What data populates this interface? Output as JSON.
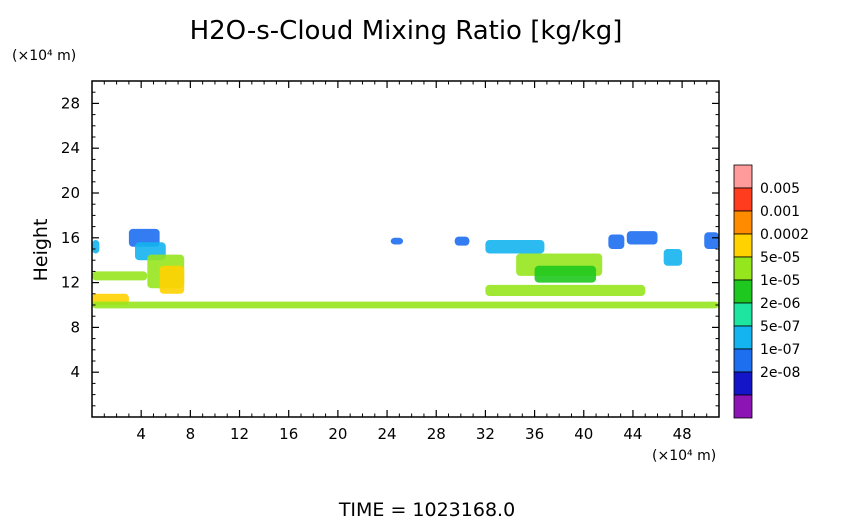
{
  "chart_data": {
    "type": "heatmap",
    "title": "H2O-s-Cloud Mixing Ratio [kg/kg]",
    "ylabel": "Height",
    "y_unit": "(×10⁴ m)",
    "x_unit": "(×10⁴ m)",
    "footer": "TIME =  1023168.0",
    "xlim": [
      0,
      51
    ],
    "ylim": [
      0,
      30
    ],
    "x_ticks": [
      4,
      8,
      12,
      16,
      20,
      24,
      28,
      32,
      36,
      40,
      44,
      48
    ],
    "y_ticks": [
      4,
      8,
      12,
      16,
      20,
      24,
      28
    ],
    "legend": {
      "placement": "right",
      "labels": [
        "0.005",
        "0.001",
        "0.0002",
        "5e-05",
        "1e-05",
        "2e-06",
        "5e-07",
        "1e-07",
        "2e-08"
      ],
      "colors": [
        "#ff9b9b",
        "#ff3c1e",
        "#ff8c00",
        "#ffd200",
        "#96e61e",
        "#1ec81e",
        "#1ee6a0",
        "#14b4f0",
        "#1e6ef0",
        "#1414c8",
        "#8c14b4"
      ]
    },
    "regions": [
      {
        "x": [
          0.0,
          0.6
        ],
        "y": [
          14.6,
          15.8
        ],
        "level": "5e-07"
      },
      {
        "x": [
          3.0,
          5.5
        ],
        "y": [
          15.2,
          16.8
        ],
        "level": "1e-07"
      },
      {
        "x": [
          3.5,
          6.0
        ],
        "y": [
          14.0,
          15.6
        ],
        "level": "5e-07"
      },
      {
        "x": [
          4.5,
          7.5
        ],
        "y": [
          11.5,
          14.5
        ],
        "level": "5e-05"
      },
      {
        "x": [
          5.5,
          7.5
        ],
        "y": [
          11.0,
          13.5
        ],
        "level": "0.0002"
      },
      {
        "x": [
          0.0,
          4.5
        ],
        "y": [
          12.2,
          13.0
        ],
        "level": "5e-05"
      },
      {
        "x": [
          0.0,
          3.0
        ],
        "y": [
          10.0,
          11.0
        ],
        "level": "0.0002"
      },
      {
        "x": [
          0.0,
          51.0
        ],
        "y": [
          9.7,
          10.3
        ],
        "level": "5e-05"
      },
      {
        "x": [
          24.3,
          25.3
        ],
        "y": [
          15.4,
          16.0
        ],
        "level": "1e-07"
      },
      {
        "x": [
          29.5,
          30.7
        ],
        "y": [
          15.3,
          16.1
        ],
        "level": "1e-07"
      },
      {
        "x": [
          32.0,
          36.8
        ],
        "y": [
          14.6,
          15.8
        ],
        "level": "5e-07"
      },
      {
        "x": [
          34.5,
          41.5
        ],
        "y": [
          12.6,
          14.6
        ],
        "level": "5e-05"
      },
      {
        "x": [
          36.0,
          41.0
        ],
        "y": [
          12.0,
          13.5
        ],
        "level": "1e-05"
      },
      {
        "x": [
          32.0,
          45.0
        ],
        "y": [
          10.8,
          11.8
        ],
        "level": "5e-05"
      },
      {
        "x": [
          42.0,
          43.3
        ],
        "y": [
          15.0,
          16.3
        ],
        "level": "1e-07"
      },
      {
        "x": [
          43.5,
          46.0
        ],
        "y": [
          15.4,
          16.6
        ],
        "level": "1e-07"
      },
      {
        "x": [
          46.5,
          48.0
        ],
        "y": [
          13.5,
          15.0
        ],
        "level": "5e-07"
      },
      {
        "x": [
          49.8,
          51.0
        ],
        "y": [
          15.0,
          16.5
        ],
        "level": "1e-07"
      }
    ]
  }
}
